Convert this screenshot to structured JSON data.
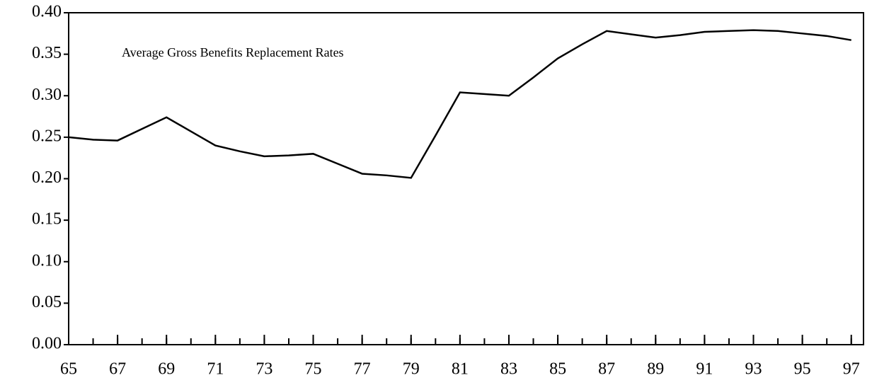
{
  "chart_data": {
    "type": "line",
    "annotation": "Average Gross Benefits Replacement Rates",
    "x": [
      65,
      66,
      67,
      68,
      69,
      70,
      71,
      72,
      73,
      74,
      75,
      76,
      77,
      78,
      79,
      80,
      81,
      82,
      83,
      84,
      85,
      86,
      87,
      88,
      89,
      90,
      91,
      92,
      93,
      94,
      95,
      96,
      97
    ],
    "series": [
      {
        "color": "#000000",
        "values": [
          0.25,
          0.247,
          0.246,
          0.26,
          0.274,
          0.257,
          0.24,
          0.233,
          0.227,
          0.228,
          0.23,
          0.218,
          0.206,
          0.204,
          0.201,
          0.252,
          0.304,
          0.302,
          0.3,
          0.322,
          0.345,
          0.362,
          0.378,
          0.374,
          0.37,
          0.373,
          0.377,
          0.378,
          0.379,
          0.378,
          0.375,
          0.372,
          0.367
        ]
      }
    ],
    "xlim": [
      65,
      97.5
    ],
    "xticks": [
      65,
      67,
      69,
      71,
      73,
      75,
      77,
      79,
      81,
      83,
      85,
      87,
      89,
      91,
      93,
      95,
      97
    ],
    "ylim": [
      0,
      0.4
    ],
    "yticks": [
      {
        "value": 0,
        "label": "0.00"
      },
      {
        "value": 0.05,
        "label": "0.05"
      },
      {
        "value": 0.1,
        "label": "0.10"
      },
      {
        "value": 0.15,
        "label": "0.15"
      },
      {
        "value": 0.2,
        "label": "0.20"
      },
      {
        "value": 0.25,
        "label": "0.25"
      },
      {
        "value": 0.3,
        "label": "0.30"
      },
      {
        "value": 0.35,
        "label": "0.35"
      },
      {
        "value": 0.4,
        "label": "0.40"
      }
    ],
    "grid": false
  }
}
